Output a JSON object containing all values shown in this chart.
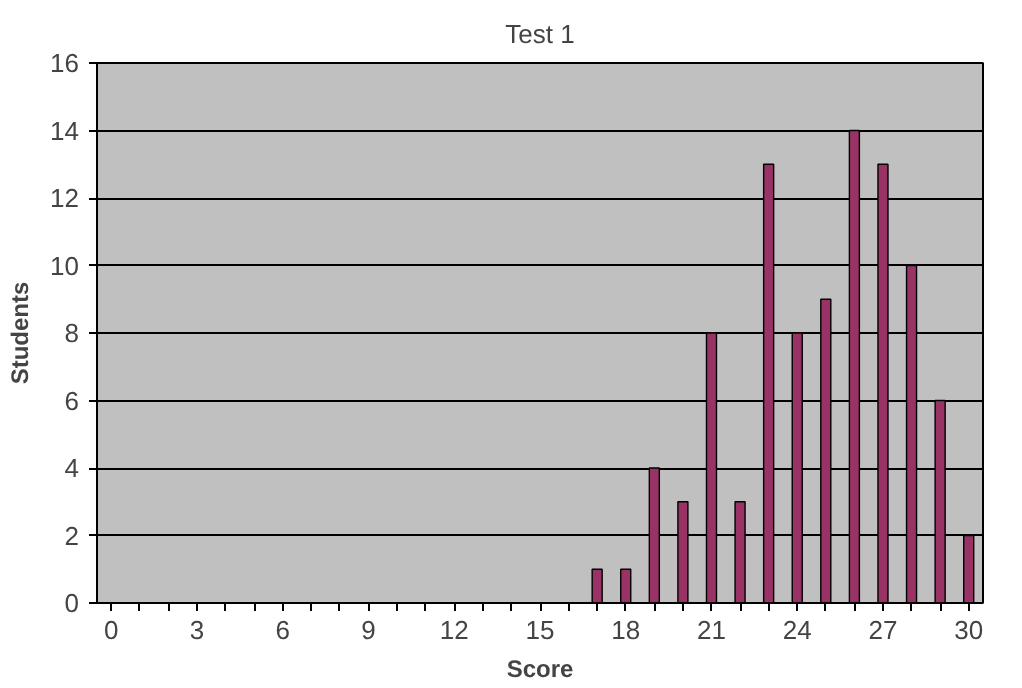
{
  "chart_data": {
    "type": "bar",
    "title": "Test 1",
    "xlabel": "Score",
    "ylabel": "Students",
    "categories": [
      "0",
      null,
      null,
      "3",
      null,
      null,
      "6",
      null,
      null,
      "9",
      null,
      null,
      "12",
      null,
      null,
      "15",
      null,
      null,
      "18",
      null,
      null,
      "21",
      null,
      null,
      "24",
      null,
      null,
      "27",
      null,
      null,
      "30"
    ],
    "series": [
      {
        "color": "#993366",
        "values": [
          0,
          0,
          0,
          0,
          0,
          0,
          0,
          0,
          0,
          0,
          0,
          0,
          0,
          0,
          0,
          0,
          0,
          1,
          1,
          4,
          3,
          8,
          3,
          13,
          8,
          9,
          14,
          13,
          10,
          6,
          2
        ]
      }
    ],
    "ylim": [
      0,
      16
    ],
    "yticks": [
      0,
      2,
      4,
      6,
      8,
      10,
      12,
      14,
      16
    ],
    "grid": "y"
  }
}
